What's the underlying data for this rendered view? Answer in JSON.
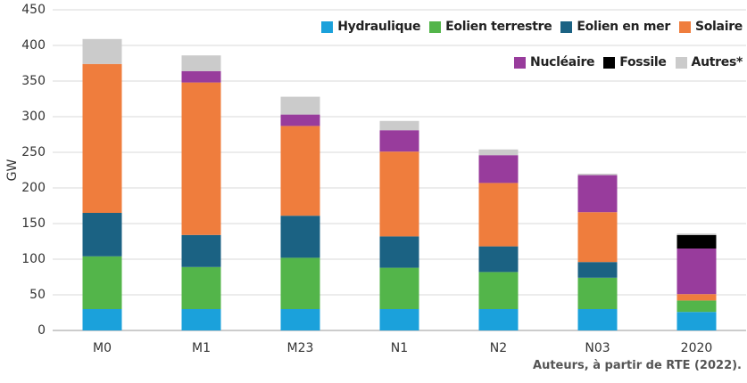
{
  "chart_data": {
    "type": "stacked_bar",
    "y_label": "GW",
    "source": "Auteurs, à partir de RTE (2022).",
    "categories": [
      "M0",
      "M1",
      "M23",
      "N1",
      "N2",
      "N03",
      "2020"
    ],
    "series": [
      {
        "name": "Hydraulique",
        "color": "#1ba1db",
        "values": [
          30,
          30,
          30,
          30,
          30,
          30,
          26
        ]
      },
      {
        "name": "Eolien terrestre",
        "color": "#53b54a",
        "values": [
          74,
          59,
          72,
          58,
          52,
          44,
          16
        ]
      },
      {
        "name": "Eolien en mer",
        "color": "#1b6283",
        "values": [
          61,
          45,
          59,
          44,
          36,
          22,
          0
        ]
      },
      {
        "name": "Solaire",
        "color": "#ef7d3d",
        "values": [
          209,
          214,
          126,
          119,
          89,
          70,
          9
        ]
      },
      {
        "name": "Nucléaire",
        "color": "#983c9c",
        "values": [
          0,
          16,
          16,
          30,
          39,
          52,
          64
        ]
      },
      {
        "name": "Fossile",
        "color": "#000000",
        "values": [
          0,
          0,
          0,
          0,
          0,
          0,
          19
        ]
      },
      {
        "name": "Autres*",
        "color": "#cbcbcb",
        "values": [
          35,
          22,
          25,
          13,
          8,
          2,
          2
        ]
      }
    ],
    "ylim": [
      0,
      450
    ],
    "yticks": [
      0,
      50,
      100,
      150,
      200,
      250,
      300,
      350,
      400,
      450
    ],
    "grid": true
  }
}
